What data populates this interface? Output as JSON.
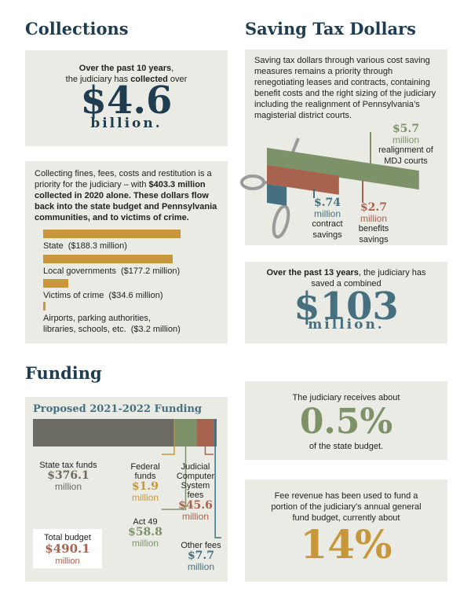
{
  "collections": {
    "heading": "Collections",
    "summary": {
      "lines": [
        [
          {
            "text": "Over the past 10 years",
            "bold": true
          },
          {
            "text": ","
          }
        ],
        [
          {
            "text": "the judiciary has "
          },
          {
            "text": "collected",
            "bold": true
          },
          {
            "text": " over"
          }
        ]
      ],
      "figure": "$4.6",
      "unit": "billion.",
      "color": "#1f3d50"
    },
    "detail": {
      "segments": [
        {
          "text": "Collecting fines, fees, costs and restitution is a priority for the judiciary – with "
        },
        {
          "text": "$403.3 million collected in 2020 alone. These dollars flow back into the state budget and Pennsylvania communities, and to victims of crime.",
          "bold": true
        }
      ],
      "chart": {
        "type": "bar",
        "orientation": "horizontal",
        "color": "#c8973a",
        "categories": [
          "State",
          "Local governments",
          "Victims of crime",
          "Airports, parking authorities, libraries, schools, etc."
        ],
        "values": [
          188.3,
          177.2,
          34.6,
          3.2
        ],
        "value_labels": [
          "($188.3 million)",
          "($177.2 million)",
          "($34.6 million)",
          "($3.2 million)"
        ]
      }
    }
  },
  "saving": {
    "heading": "Saving Tax Dollars",
    "text": "Saving tax dollars through various cost saving measures remains a priority through renegotiating leases and contracts, containing benefit costs and the right sizing of the judiciary including the realignment of Pennsylvania’s magisterial district courts.",
    "chart": {
      "type": "bar",
      "categories": [
        "realignment of MDJ courts",
        "benefits savings",
        "contract savings"
      ],
      "values": [
        5.7,
        2.7,
        0.74
      ],
      "value_labels": [
        "$5.7",
        "$2.7",
        "$.74"
      ],
      "unit": "million",
      "colors": [
        "#7e9269",
        "#a8634f",
        "#46707f"
      ]
    },
    "summary": {
      "segments": [
        {
          "text": "Over the past 13 years",
          "bold": true
        },
        {
          "text": ", the judiciary has saved a combined"
        }
      ],
      "figure": "$103",
      "unit": "million.",
      "color": "#46707f"
    }
  },
  "funding": {
    "heading": "Funding",
    "chart": {
      "type": "stacked-bar",
      "title": "Proposed 2021-2022 Funding",
      "unit": "million",
      "series": [
        {
          "name": "State tax funds",
          "value": 376.1,
          "value_label": "$376.1",
          "color": "#6b6b63"
        },
        {
          "name": "Federal funds",
          "value": 1.9,
          "value_label": "$1.9",
          "color": "#c8973a"
        },
        {
          "name": "Act 49",
          "value": 58.8,
          "value_label": "$58.8",
          "color": "#7e9269"
        },
        {
          "name": "Judicial Computer System fees",
          "value": 45.6,
          "value_label": "$45.6",
          "color": "#a8634f"
        },
        {
          "name": "Other fees",
          "value": 7.7,
          "value_label": "$7.7",
          "color": "#46707f"
        }
      ]
    },
    "total": {
      "name": "Total budget",
      "value_label": "$490.1",
      "unit": "million",
      "color": "#a8634f"
    }
  },
  "callouts": [
    {
      "before": "The judiciary receives about",
      "figure": "0.5%",
      "after": "of the state budget.",
      "color": "#7e9269"
    },
    {
      "before": "Fee revenue has been used to fund a portion of the judiciary’s annual general fund budget, currently about",
      "figure": "14%",
      "color": "#c8973a"
    }
  ]
}
